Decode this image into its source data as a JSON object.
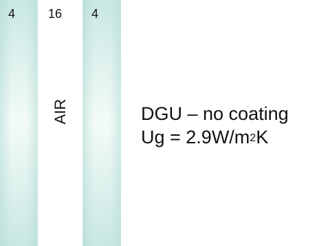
{
  "panes": {
    "left_thickness": "4",
    "gap_thickness": "16",
    "right_thickness": "4",
    "gap_label": "AIR"
  },
  "caption": {
    "title": "DGU – no coating",
    "ug_prefix": "Ug = 2.9W/m",
    "ug_exponent": "2",
    "ug_suffix": "K"
  },
  "colors": {
    "glass_tint": "#c9e7e2",
    "text": "#111111",
    "background": "#ffffff"
  }
}
